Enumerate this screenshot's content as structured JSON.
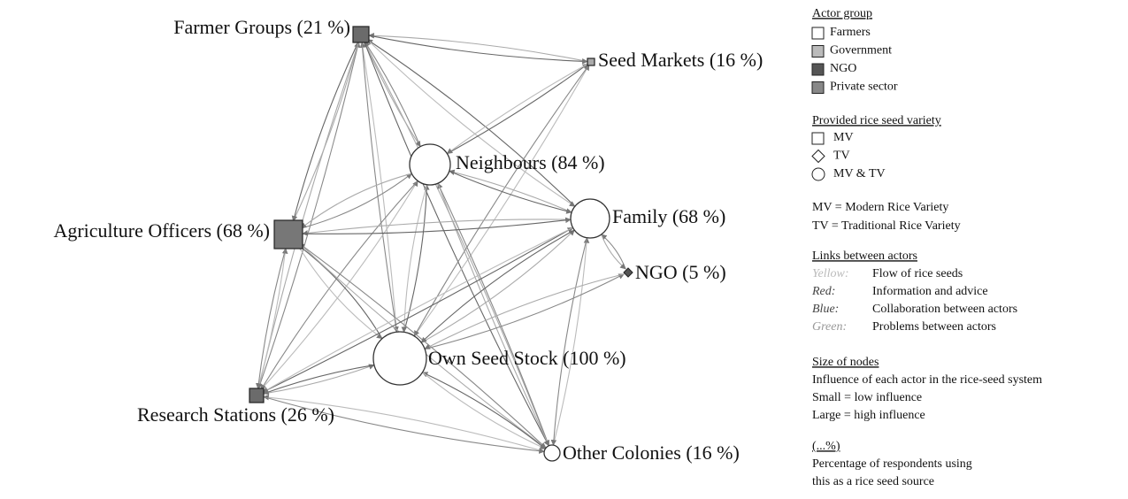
{
  "nodes": [
    {
      "label": "Farmer Groups (21 %)"
    },
    {
      "label": "Seed Markets (16 %)"
    },
    {
      "label": "Neighbours (84 %)"
    },
    {
      "label": "Agriculture Officers (68 %)"
    },
    {
      "label": "Family (68 %)"
    },
    {
      "label": "NGO (5 %)"
    },
    {
      "label": "Own Seed Stock (100 %)"
    },
    {
      "label": "Research Stations (26 %)"
    },
    {
      "label": "Other Colonies (16 %)"
    }
  ],
  "legend": {
    "actor_group": {
      "title": "Actor group",
      "items": [
        "Farmers",
        "Government",
        "NGO",
        "Private sector"
      ]
    },
    "variety": {
      "title": "Provided rice seed variety",
      "items": [
        "MV",
        "TV",
        "MV & TV"
      ]
    },
    "abbreviations": [
      "MV = Modern Rice Variety",
      "TV = Traditional Rice Variety"
    ],
    "links": {
      "title": "Links between actors",
      "items": [
        {
          "key": "Yellow:",
          "text": "Flow of rice seeds"
        },
        {
          "key": "Red:",
          "text": "Information and advice"
        },
        {
          "key": "Blue:",
          "text": "Collaboration between actors"
        },
        {
          "key": "Green:",
          "text": "Problems between actors"
        }
      ]
    },
    "size": {
      "title": "Size of nodes",
      "lines": [
        "Influence of each actor in the rice-seed system",
        "Small = low influence",
        "Large = high influence"
      ]
    },
    "percent": {
      "title": "(...%)",
      "lines": [
        "Percentage of respondents using",
        "this as a rice seed source"
      ]
    }
  }
}
